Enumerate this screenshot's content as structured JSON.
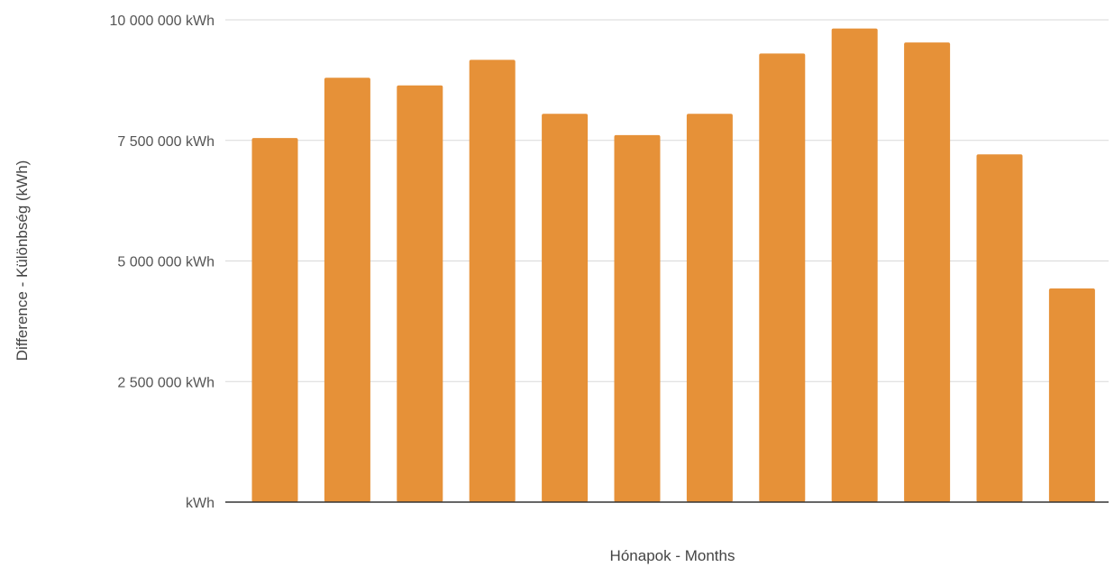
{
  "chart_data": {
    "type": "bar",
    "title": "",
    "xlabel": "Hónapok - Months",
    "ylabel": "Difference - Különbség (kWh)",
    "ylim": [
      0,
      10000000
    ],
    "grid": true,
    "legend": "none",
    "categories": [
      "",
      "",
      "",
      "",
      "",
      "",
      "",
      "",
      "",
      "",
      "",
      ""
    ],
    "values": [
      7550000,
      8800000,
      8640000,
      9170000,
      8050000,
      7610000,
      8050000,
      9300000,
      9820000,
      9530000,
      7210000,
      4430000
    ],
    "y_ticks": [
      {
        "value": 0,
        "label": "kWh"
      },
      {
        "value": 2500000,
        "label": "2 500 000  kWh"
      },
      {
        "value": 5000000,
        "label": "5 000 000  kWh"
      },
      {
        "value": 7500000,
        "label": "7 500 000  kWh"
      },
      {
        "value": 10000000,
        "label": "10 000 000  kWh"
      }
    ],
    "colors": {
      "bar": "#E69138",
      "grid": "#d9d9d9",
      "baseline": "#333333",
      "tick_text": "#555555",
      "axis_title": "#444444"
    }
  }
}
